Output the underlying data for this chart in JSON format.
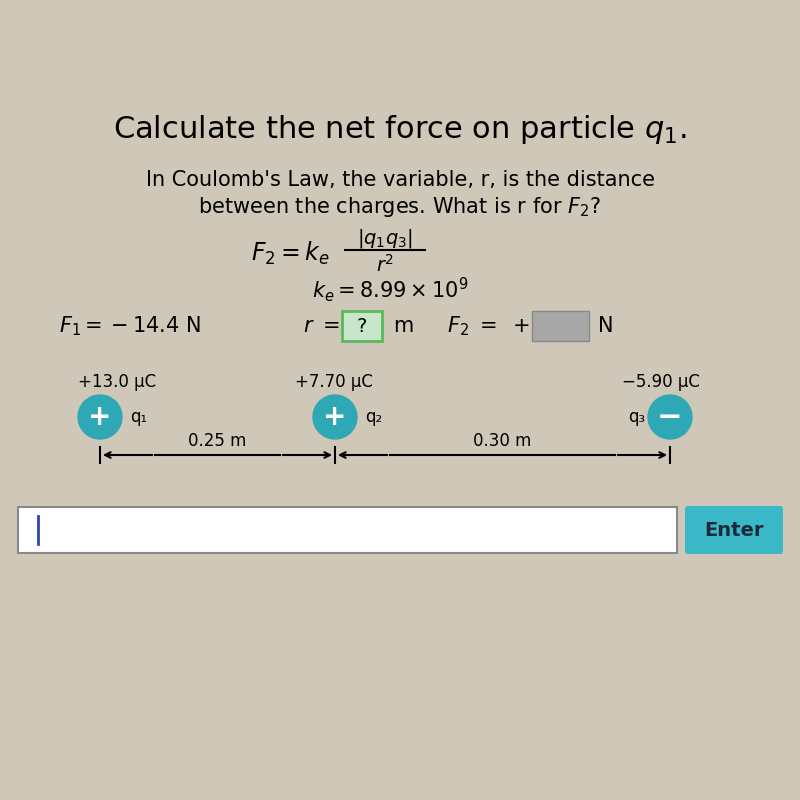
{
  "bg_color": "#cfc8b8",
  "circle_color": "#2fa8b5",
  "enter_button_color": "#3bb8c8",
  "q1_charge": "+13.0 μC",
  "q2_charge": "+7.70 μC",
  "q3_charge": "−5.90 μC",
  "q1_label": "q₁",
  "q2_label": "q₂",
  "q3_label": "q₃",
  "dist1": "0.25 m",
  "dist2": "0.30 m",
  "enter_text": "Enter",
  "question_box_color_edge": "#5cb85c",
  "question_box_color_face": "#c8e6c9",
  "answer_box_color": "#a8a8a8",
  "input_cursor_color": "#3344aa"
}
